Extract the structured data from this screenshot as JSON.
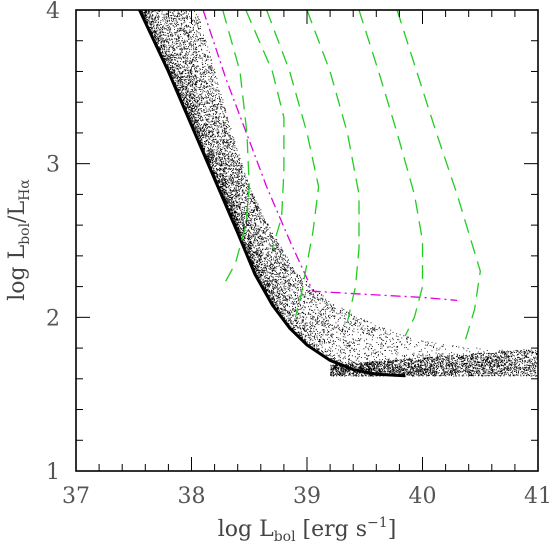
{
  "chart_data": {
    "type": "scatter",
    "xlabel": {
      "prefix": "log L",
      "sub": "bol",
      "suffix": " [erg s",
      "sup": "−1",
      "end": "]"
    },
    "ylabel": {
      "prefix": "log L",
      "sub1": "bol",
      "mid": "/L",
      "sub2": "Hα"
    },
    "xlim": [
      37,
      41
    ],
    "ylim": [
      1,
      4
    ],
    "xticks": [
      "37",
      "38",
      "39",
      "40",
      "41"
    ],
    "yticks": [
      "1",
      "2",
      "3",
      "4"
    ],
    "grid": false,
    "legend": "none",
    "colors": {
      "points": "#000000",
      "magenta": "#e000e0",
      "green": "#22cc22",
      "axis": "#000000"
    },
    "scatter_envelope": {
      "lower_edge": [
        [
          37.55,
          4.0
        ],
        [
          37.8,
          3.6
        ],
        [
          38.0,
          3.25
        ],
        [
          38.2,
          2.9
        ],
        [
          38.4,
          2.55
        ],
        [
          38.55,
          2.28
        ],
        [
          38.7,
          2.08
        ],
        [
          38.85,
          1.93
        ],
        [
          39.0,
          1.82
        ],
        [
          39.2,
          1.72
        ],
        [
          39.4,
          1.66
        ],
        [
          39.6,
          1.63
        ],
        [
          39.85,
          1.62
        ]
      ],
      "upper_edge": [
        [
          38.05,
          4.0
        ],
        [
          38.2,
          3.6
        ],
        [
          38.35,
          3.2
        ],
        [
          38.5,
          2.85
        ],
        [
          38.7,
          2.55
        ],
        [
          38.9,
          2.3
        ],
        [
          39.2,
          2.1
        ],
        [
          39.6,
          1.95
        ],
        [
          40.0,
          1.85
        ],
        [
          40.5,
          1.8
        ],
        [
          41.0,
          1.78
        ]
      ],
      "tail_y_range": [
        1.62,
        1.8
      ]
    },
    "series": [
      {
        "style": "dashdot",
        "color": "#e000e0",
        "x": [
          38.1,
          38.3,
          38.5,
          38.65,
          38.85,
          39.05,
          39.5,
          40.0,
          40.3
        ],
        "y": [
          4.0,
          3.55,
          3.15,
          2.85,
          2.5,
          2.17,
          2.15,
          2.13,
          2.11
        ]
      },
      {
        "style": "dashed",
        "color": "#22cc22",
        "x": [
          38.27,
          38.42,
          38.48,
          38.5,
          38.47,
          38.38,
          38.27
        ],
        "y": [
          4.0,
          3.6,
          3.2,
          2.85,
          2.6,
          2.35,
          2.2
        ]
      },
      {
        "style": "dashed",
        "color": "#22cc22",
        "x": [
          38.47,
          38.7,
          38.8,
          38.8,
          38.78,
          38.7
        ],
        "y": [
          4.0,
          3.6,
          3.3,
          2.95,
          2.65,
          2.45
        ]
      },
      {
        "style": "dashed",
        "color": "#22cc22",
        "x": [
          38.65,
          38.85,
          39.0,
          39.1,
          39.05,
          39.0,
          38.95,
          38.9
        ],
        "y": [
          4.0,
          3.6,
          3.2,
          2.85,
          2.55,
          2.35,
          2.15,
          2.0
        ]
      },
      {
        "style": "dashed",
        "color": "#22cc22",
        "x": [
          39.0,
          39.2,
          39.35,
          39.45,
          39.45,
          39.42,
          39.35
        ],
        "y": [
          4.0,
          3.6,
          3.2,
          2.8,
          2.45,
          2.2,
          1.97
        ]
      },
      {
        "style": "dashed",
        "color": "#22cc22",
        "x": [
          39.45,
          39.62,
          39.78,
          39.93,
          40.0,
          40.0,
          39.93,
          39.85
        ],
        "y": [
          4.0,
          3.6,
          3.2,
          2.8,
          2.5,
          2.2,
          2.0,
          1.88
        ]
      },
      {
        "style": "dashed",
        "color": "#22cc22",
        "x": [
          39.78,
          39.95,
          40.12,
          40.3,
          40.5,
          40.45,
          40.35
        ],
        "y": [
          4.0,
          3.6,
          3.2,
          2.8,
          2.3,
          2.05,
          1.8
        ]
      }
    ]
  }
}
